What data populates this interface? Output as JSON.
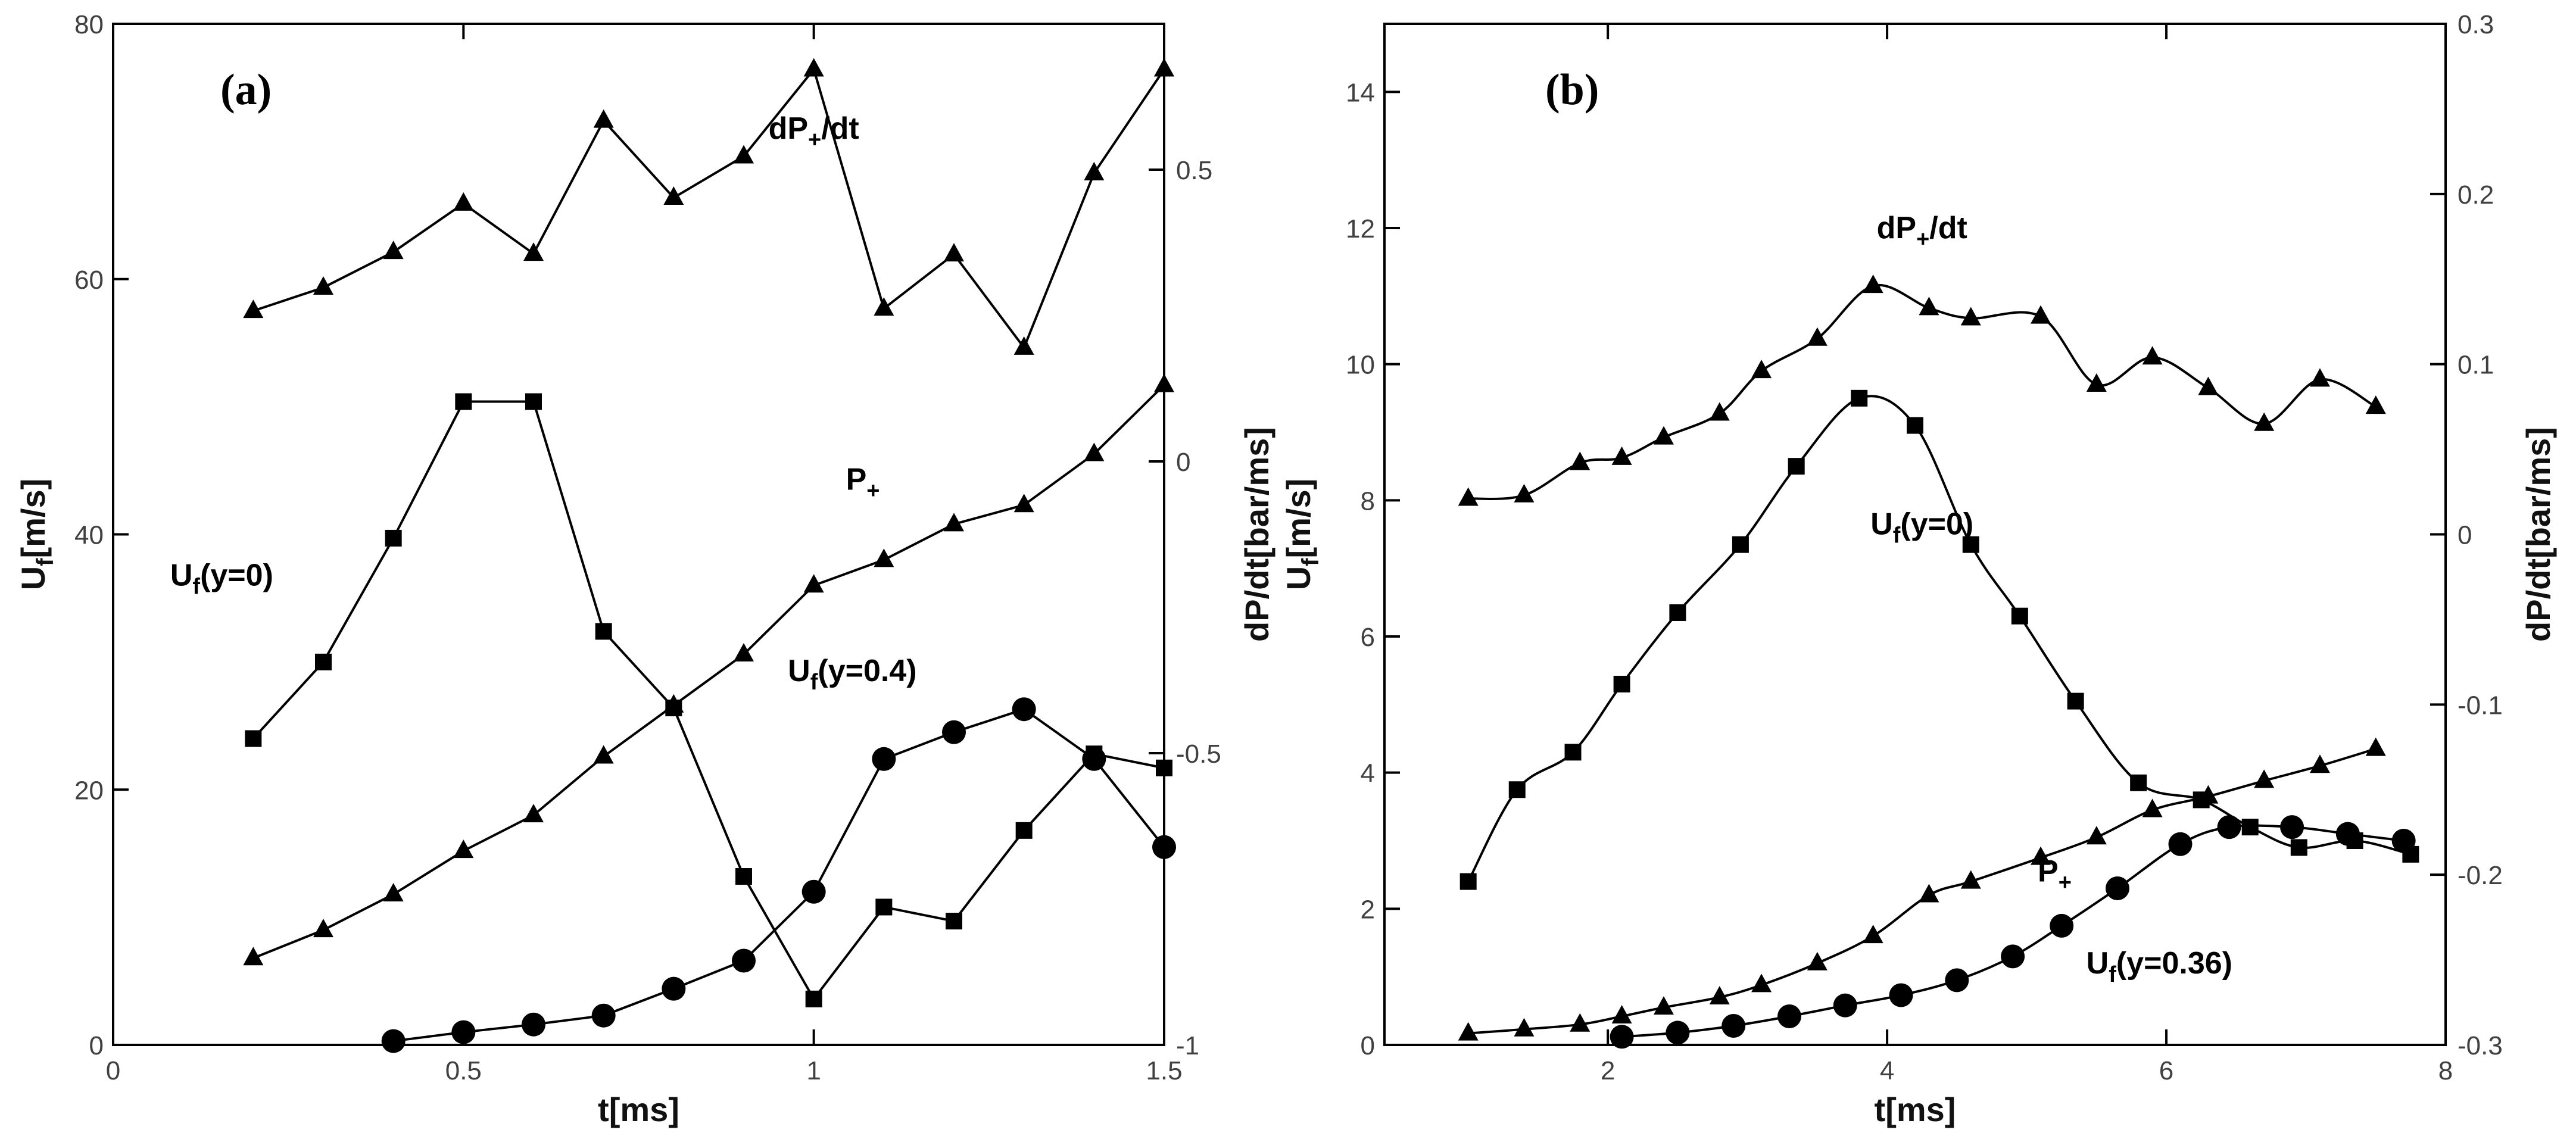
{
  "chart_data": [
    {
      "type": "line",
      "panel_label": "(a)",
      "xlabel": "t[ms]",
      "ylabel": "Uf[m/s]",
      "ylabel_main": "U",
      "ylabel_sub": "f",
      "ylabel_rest": "[m/s]",
      "y2label": "dP/dt[bar/ms]",
      "xlim": [
        0,
        1.5
      ],
      "ylim": [
        0,
        80
      ],
      "y2lim": [
        -1,
        0.75
      ],
      "x_ticks": [
        0,
        0.5,
        1,
        1.5
      ],
      "x_tick_labels": [
        "0",
        "0.5",
        "1",
        "1.5"
      ],
      "y_ticks": [
        0,
        20,
        40,
        60,
        80
      ],
      "y_tick_labels": [
        "0",
        "20",
        "40",
        "60",
        "80"
      ],
      "y2_ticks": [
        -1,
        -0.5,
        0,
        0.5
      ],
      "y2_tick_labels": [
        "-1",
        "-0.5",
        "0",
        "0.5"
      ],
      "series": [
        {
          "name": "dP+/dt",
          "label_main": "dP",
          "label_sub": "+",
          "label_rest": "/dt",
          "axis": "right",
          "marker": "triangle",
          "smooth": false,
          "label_at": [
            1.0,
            71
          ],
          "x": [
            0.2,
            0.3,
            0.4,
            0.5,
            0.6,
            0.7,
            0.8,
            0.9,
            1.0,
            1.1,
            1.2,
            1.3,
            1.4,
            1.5
          ],
          "y": [
            0.258,
            0.298,
            0.359,
            0.442,
            0.356,
            0.584,
            0.452,
            0.523,
            0.672,
            0.262,
            0.355,
            0.195,
            0.494,
            0.672
          ]
        },
        {
          "name": "P+",
          "label_main": "P",
          "label_sub": "+",
          "label_rest": "",
          "axis": "left",
          "marker": "triangle",
          "smooth": false,
          "label_at": [
            1.07,
            43.5
          ],
          "x": [
            0.2,
            0.3,
            0.4,
            0.5,
            0.6,
            0.7,
            0.8,
            0.9,
            1.0,
            1.1,
            1.2,
            1.3,
            1.4,
            1.5
          ],
          "y": [
            6.8,
            9.0,
            11.8,
            15.2,
            18.0,
            22.6,
            26.6,
            30.6,
            36.0,
            38.0,
            40.8,
            42.3,
            46.3,
            51.7
          ]
        },
        {
          "name": "Uf(y=0)",
          "label_main": "U",
          "label_sub": "f",
          "label_rest": "(y=0)",
          "axis": "left",
          "marker": "square",
          "smooth": false,
          "label_at": [
            0.155,
            36
          ],
          "x": [
            0.2,
            0.3,
            0.4,
            0.5,
            0.6,
            0.7,
            0.8,
            0.9,
            1.0,
            1.1,
            1.2,
            1.3,
            1.4,
            1.5
          ],
          "y": [
            24.0,
            30.0,
            39.7,
            50.4,
            50.4,
            32.4,
            26.4,
            13.2,
            3.6,
            10.8,
            9.7,
            16.8,
            22.8,
            21.7
          ]
        },
        {
          "name": "Uf(y=0.4)",
          "label_main": "U",
          "label_sub": "f",
          "label_rest": "(y=0.4)",
          "axis": "left",
          "marker": "circle",
          "smooth": false,
          "label_at": [
            1.055,
            28.5
          ],
          "x": [
            0.4,
            0.5,
            0.6,
            0.7,
            0.8,
            0.9,
            1.0,
            1.1,
            1.2,
            1.3,
            1.4,
            1.5
          ],
          "y": [
            0.3,
            1.0,
            1.6,
            2.3,
            4.4,
            6.6,
            12.0,
            22.4,
            24.5,
            26.3,
            22.4,
            15.5
          ]
        }
      ]
    },
    {
      "type": "line",
      "panel_label": "(b)",
      "xlabel": "t[ms]",
      "ylabel": "Uf[m/s]",
      "ylabel_main": "U",
      "ylabel_sub": "f",
      "ylabel_rest": "[m/s]",
      "y2label": "dP/dt[bar/ms]",
      "xlim": [
        0.4,
        8
      ],
      "ylim": [
        0,
        15
      ],
      "y2lim": [
        -0.3,
        0.3
      ],
      "x_ticks": [
        2,
        4,
        6,
        8
      ],
      "x_tick_labels": [
        "2",
        "4",
        "6",
        "8"
      ],
      "y_ticks": [
        0,
        2,
        4,
        6,
        8,
        10,
        12,
        14
      ],
      "y_tick_labels": [
        "0",
        "2",
        "4",
        "6",
        "8",
        "10",
        "12",
        "14"
      ],
      "y2_ticks": [
        -0.3,
        -0.2,
        -0.1,
        0,
        0.1,
        0.2,
        0.3
      ],
      "y2_tick_labels": [
        "-0.3",
        "-0.2",
        "-0.1",
        "0",
        "0.1",
        "0.2",
        "0.3"
      ],
      "series": [
        {
          "name": "dP+/dt",
          "label_main": "dP",
          "label_sub": "+",
          "label_rest": "/dt",
          "axis": "right",
          "marker": "triangle",
          "smooth": true,
          "label_at": [
            4.25,
            11.85
          ],
          "x": [
            1.0,
            1.4,
            1.8,
            2.1,
            2.4,
            2.8,
            3.1,
            3.5,
            3.9,
            4.3,
            4.6,
            5.1,
            5.5,
            5.9,
            6.3,
            6.7,
            7.1,
            7.5
          ],
          "y": [
            0.021,
            0.023,
            0.042,
            0.045,
            0.057,
            0.071,
            0.096,
            0.115,
            0.146,
            0.133,
            0.127,
            0.128,
            0.088,
            0.104,
            0.086,
            0.065,
            0.091,
            0.075
          ]
        },
        {
          "name": "P+",
          "label_main": "P",
          "label_sub": "+",
          "label_rest": "",
          "axis": "left",
          "marker": "triangle",
          "smooth": true,
          "label_at": [
            5.2,
            2.4
          ],
          "x": [
            1.0,
            1.4,
            1.8,
            2.1,
            2.4,
            2.8,
            3.1,
            3.5,
            3.9,
            4.3,
            4.6,
            5.1,
            5.5,
            5.9,
            6.3,
            6.7,
            7.1,
            7.5
          ],
          "y": [
            0.17,
            0.23,
            0.3,
            0.42,
            0.55,
            0.7,
            0.88,
            1.2,
            1.6,
            2.2,
            2.4,
            2.75,
            3.05,
            3.45,
            3.65,
            3.88,
            4.1,
            4.35
          ]
        },
        {
          "name": "Uf(y=0)",
          "label_main": "U",
          "label_sub": "f",
          "label_rest": "(y=0)",
          "axis": "left",
          "marker": "square",
          "smooth": true,
          "label_at": [
            4.25,
            7.5
          ],
          "x": [
            1.0,
            1.35,
            1.75,
            2.1,
            2.5,
            2.95,
            3.35,
            3.8,
            4.2,
            4.6,
            4.95,
            5.35,
            5.8,
            6.25,
            6.6,
            6.95,
            7.35,
            7.75
          ],
          "y": [
            2.4,
            3.75,
            4.3,
            5.3,
            6.35,
            7.35,
            8.5,
            9.5,
            9.1,
            7.35,
            6.3,
            5.05,
            3.85,
            3.6,
            3.2,
            2.9,
            3.0,
            2.8
          ]
        },
        {
          "name": "Uf(y=0.36)",
          "label_main": "U",
          "label_sub": "f",
          "label_rest": "(y=0.36)",
          "axis": "left",
          "marker": "circle",
          "smooth": true,
          "label_at": [
            5.95,
            1.05
          ],
          "x": [
            2.1,
            2.5,
            2.9,
            3.3,
            3.7,
            4.1,
            4.5,
            4.9,
            5.25,
            5.65,
            6.1,
            6.45,
            6.9,
            7.3,
            7.7
          ],
          "y": [
            0.12,
            0.18,
            0.28,
            0.42,
            0.58,
            0.73,
            0.95,
            1.3,
            1.75,
            2.3,
            2.95,
            3.2,
            3.2,
            3.1,
            3.0
          ]
        }
      ]
    }
  ]
}
